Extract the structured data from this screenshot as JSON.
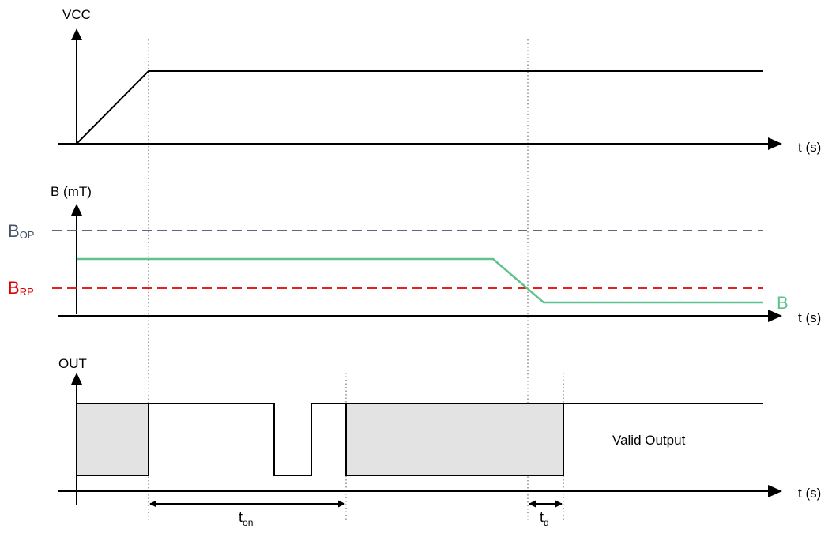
{
  "vcc_panel": {
    "y_label": "VCC",
    "x_label": "t (s)"
  },
  "b_panel": {
    "y_label": "B (mT)",
    "x_label": "t (s)",
    "bop_main": "B",
    "bop_sub": "OP",
    "brp_main": "B",
    "brp_sub": "RP",
    "signal_label": "B"
  },
  "out_panel": {
    "y_label": "OUT",
    "x_label": "t (s)",
    "valid_label": "Valid Output"
  },
  "timing": {
    "ton_main": "t",
    "ton_sub": "on",
    "td_main": "t",
    "td_sub": "d"
  },
  "colors": {
    "axis": "#000000",
    "bop": "#44546A",
    "brp": "#E30000",
    "signal": "#5EC28F",
    "fill": "#E3E3E3",
    "guide": "#555555"
  }
}
